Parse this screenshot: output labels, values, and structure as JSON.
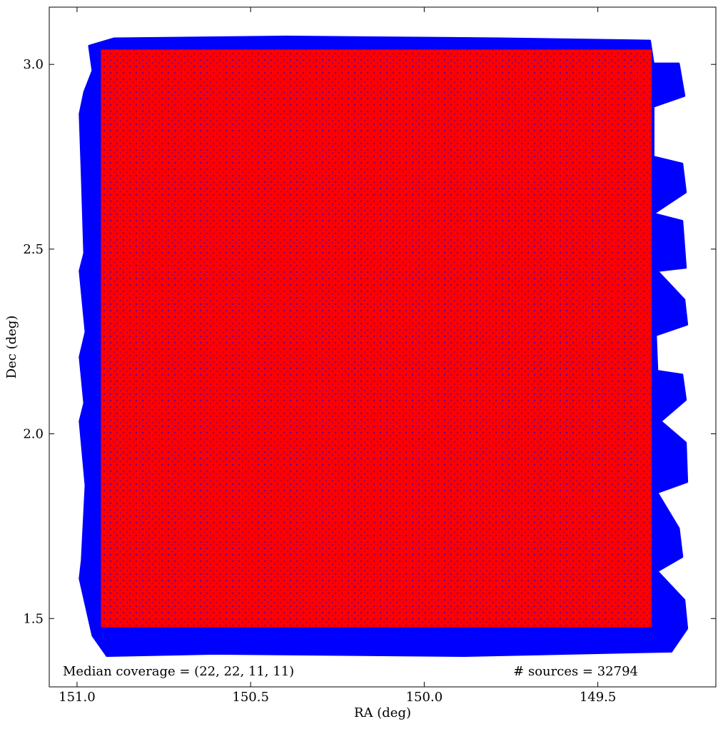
{
  "chart_data": {
    "type": "scatter",
    "xlabel": "RA (deg)",
    "ylabel": "Dec (deg)",
    "xlim": [
      151.08,
      149.16
    ],
    "ylim": [
      1.315,
      3.155
    ],
    "xticks": [
      {
        "value": 151,
        "label": "151.0"
      },
      150.5,
      {
        "value": 150,
        "label": "150.0"
      },
      149.5
    ],
    "yticks": [
      1.5,
      {
        "value": 2,
        "label": "2.0"
      },
      2.5,
      {
        "value": 3,
        "label": "3.0"
      }
    ],
    "annotations": [
      "Median coverage = (22, 22, 11, 11)",
      "# sources = 32794"
    ],
    "series": [
      {
        "color": "#0000ff",
        "x": [
          150.965,
          150.893,
          150.399,
          149.782,
          149.35,
          149.34,
          149.267,
          149.251,
          149.34,
          149.34,
          149.257,
          149.247,
          149.34,
          149.257,
          149.247,
          149.329,
          149.251,
          149.243,
          149.333,
          149.329,
          149.257,
          149.247,
          149.319,
          149.247,
          149.243,
          149.329,
          149.267,
          149.257,
          149.329,
          149.251,
          149.243,
          149.288,
          149.885,
          150.605,
          150.914,
          150.955,
          150.992,
          150.986,
          150.975,
          150.992,
          150.979,
          150.992,
          150.975,
          150.992,
          150.979,
          150.986,
          150.992,
          150.979,
          150.955
        ],
        "y": [
          3.05,
          3.07,
          3.075,
          3.07,
          3.064,
          3.002,
          3.002,
          2.915,
          2.886,
          2.75,
          2.731,
          2.654,
          2.596,
          2.576,
          2.45,
          2.441,
          2.363,
          2.296,
          2.267,
          2.17,
          2.16,
          2.092,
          2.034,
          1.976,
          1.87,
          1.841,
          1.744,
          1.667,
          1.628,
          1.55,
          1.473,
          1.411,
          1.399,
          1.405,
          1.399,
          1.454,
          1.608,
          1.657,
          1.86,
          2.034,
          2.083,
          2.208,
          2.276,
          2.441,
          2.489,
          2.702,
          2.866,
          2.925,
          2.983
        ]
      },
      {
        "color": "#ff0000",
        "x": [
          150.928,
          149.348,
          149.348,
          150.928
        ],
        "y": [
          3.037,
          3.037,
          1.479,
          1.479
        ]
      }
    ]
  }
}
